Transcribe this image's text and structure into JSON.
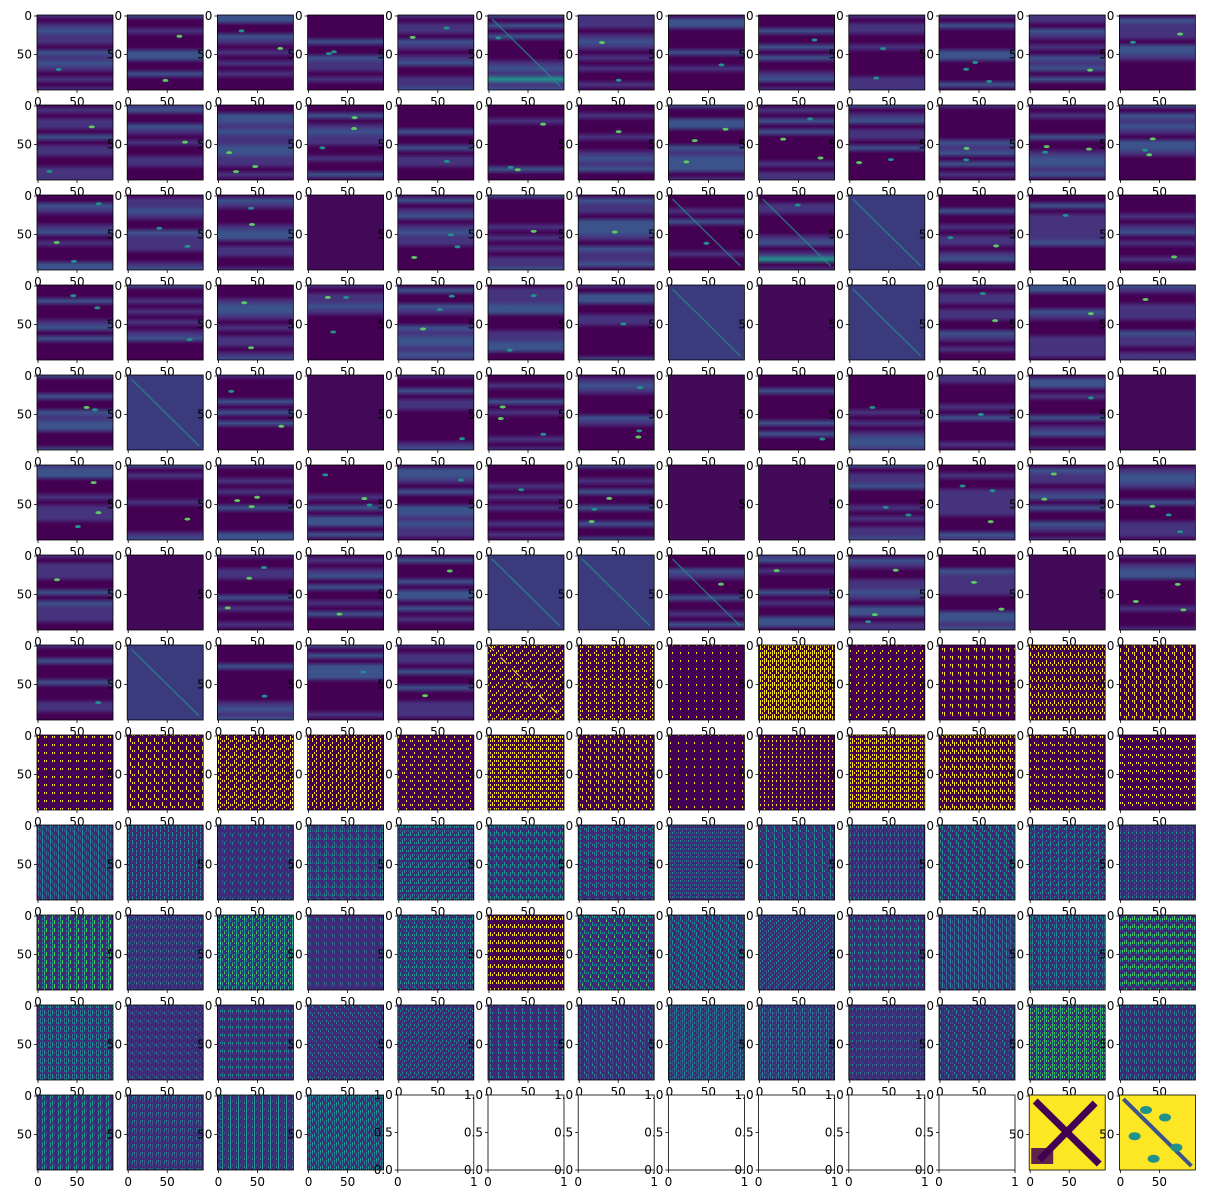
{
  "figure": {
    "rows": 13,
    "cols": 13,
    "colormap": "viridis",
    "colormap_stops": [
      "#440154",
      "#3b528b",
      "#21918c",
      "#5ec962",
      "#fde725"
    ]
  },
  "chart_data": [
    {
      "type": "heatmap",
      "description_of_grid": "13x13 grid of image subplots; each image axis spans 0 to ~95 with ticks at 0 and 50",
      "image_axis": {
        "xlim": [
          0,
          95
        ],
        "ylim": [
          95,
          0
        ],
        "xticks": [
          "0",
          "50"
        ],
        "yticks": [
          "0",
          "50"
        ]
      },
      "empty_axis": {
        "xlim": [
          0,
          1
        ],
        "ylim": [
          0,
          1
        ],
        "xticks": [
          "0",
          "1"
        ],
        "yticks": [
          "0.0",
          "0.5",
          "1.0"
        ]
      },
      "panel_kinds": [
        "stripes",
        "stripes",
        "stripes",
        "stripes",
        "stripes",
        "stripes-bright",
        "stripes",
        "stripes",
        "stripes",
        "stripes",
        "stripes",
        "stripes",
        "stripes",
        "stripes",
        "stripes",
        "stripes",
        "stripes",
        "stripes",
        "stripes",
        "stripes",
        "stripes",
        "stripes",
        "stripes",
        "stripes",
        "stripes",
        "stripes",
        "stripes",
        "stripes",
        "stripes",
        "dark",
        "stripes",
        "stripes",
        "stripes",
        "stripes-bright",
        "stripes-bright",
        "diag",
        "stripes",
        "stripes",
        "stripes",
        "stripes",
        "stripes",
        "stripes",
        "stripes",
        "stripes",
        "stripes",
        "stripes",
        "diag",
        "dark",
        "diag",
        "stripes",
        "stripes",
        "stripes",
        "stripes",
        "diag",
        "stripes",
        "dark",
        "stripes",
        "stripes",
        "stripes",
        "dark",
        "stripes",
        "stripes",
        "stripes",
        "stripes",
        "dark",
        "stripes",
        "stripes",
        "stripes",
        "stripes",
        "stripes",
        "stripes",
        "stripes",
        "dark",
        "dark",
        "stripes",
        "stripes",
        "stripes",
        "stripes",
        "stripes",
        "dark",
        "stripes",
        "stripes",
        "stripes",
        "diag",
        "diag",
        "stripes-bright",
        "stripes",
        "stripes",
        "stripes",
        "dark",
        "stripes",
        "stripes",
        "diag",
        "stripes",
        "stripes",
        "stripes",
        "binary-diag",
        "binary",
        "binary-sparse",
        "binary-dense",
        "binary",
        "binary",
        "binary-dense",
        "binary-dense",
        "binary",
        "binary",
        "binary-dense",
        "binary",
        "binary-sparse",
        "binary",
        "binary",
        "binary",
        "binary",
        "binary",
        "binary",
        "binary",
        "binary",
        "speckle",
        "speckle",
        "speckle",
        "speckle",
        "speckle",
        "speckle",
        "speckle",
        "speckle",
        "speckle",
        "speckle",
        "speckle",
        "speckle",
        "speckle",
        "speckle-bright",
        "speckle",
        "speckle-bright",
        "speckle",
        "speckle",
        "binary",
        "speckle-bright",
        "speckle",
        "speckle",
        "speckle",
        "speckle",
        "speckle",
        "speckle-bright",
        "speckle",
        "speckle",
        "speckle",
        "speckle",
        "speckle",
        "speckle",
        "speckle",
        "speckle",
        "speckle",
        "speckle",
        "speckle",
        "speckle-bright",
        "speckle",
        "speckle",
        "speckle",
        "speckle",
        "speckle",
        "empty",
        "empty",
        "empty",
        "empty",
        "empty",
        "empty",
        "empty",
        "yellow-x",
        "yellow-blob"
      ]
    }
  ]
}
